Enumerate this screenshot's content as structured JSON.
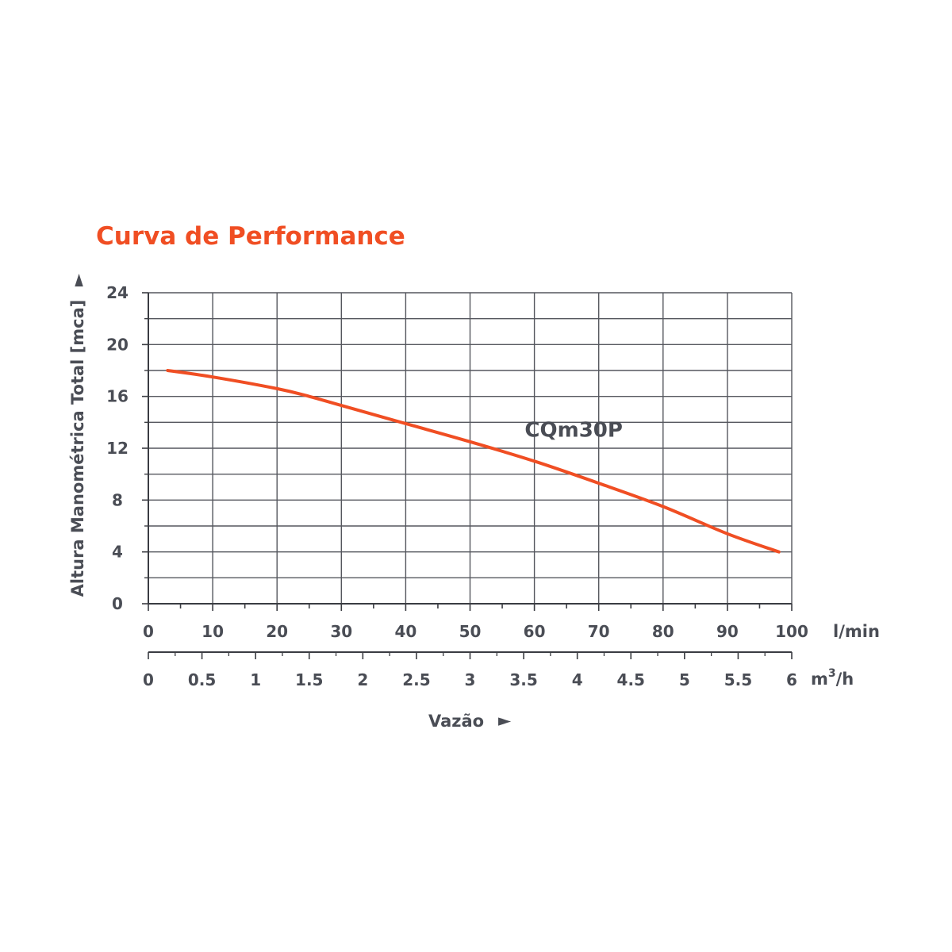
{
  "chart_data": {
    "type": "line",
    "title": "Curva de Performance",
    "ylabel": "Altura Manométrica Total [mca]",
    "xlabel": "Vazão",
    "xlim": [
      0,
      100
    ],
    "ylim": [
      0,
      24
    ],
    "x_ticks": [
      0,
      10,
      20,
      30,
      40,
      50,
      60,
      70,
      80,
      90,
      100
    ],
    "x_tick_labels": [
      "0",
      "10",
      "20",
      "30",
      "40",
      "50",
      "60",
      "70",
      "80",
      "90",
      "100"
    ],
    "x_unit": "l/min",
    "y_ticks": [
      0,
      4,
      8,
      12,
      16,
      20,
      24
    ],
    "y_tick_labels": [
      "0",
      "4",
      "8",
      "12",
      "16",
      "20",
      "24"
    ],
    "secondary_x": {
      "unit_base": "m",
      "unit_sup": "3",
      "unit_tail": "/h",
      "lim": [
        0,
        6
      ],
      "ticks": [
        0,
        0.5,
        1,
        1.5,
        2,
        2.5,
        3,
        3.5,
        4,
        4.5,
        5,
        5.5,
        6
      ],
      "tick_labels": [
        "0",
        "0.5",
        "1",
        "1.5",
        "2",
        "2.5",
        "3",
        "3.5",
        "4",
        "4.5",
        "5",
        "5.5",
        "6"
      ]
    },
    "grid": true,
    "series": [
      {
        "name": "CQm30P",
        "color": "#f04e23",
        "x": [
          3,
          10,
          20,
          25,
          30,
          40,
          50,
          60,
          70,
          80,
          90,
          98
        ],
        "y": [
          18,
          17.5,
          16.6,
          16,
          15.3,
          13.9,
          12.5,
          11,
          9.3,
          7.5,
          5.4,
          4
        ]
      }
    ],
    "colors": {
      "title": "#f04e23",
      "text": "#4a4d55",
      "grid": "#55575e",
      "axis": "#3a3c42",
      "curve": "#f04e23"
    }
  }
}
